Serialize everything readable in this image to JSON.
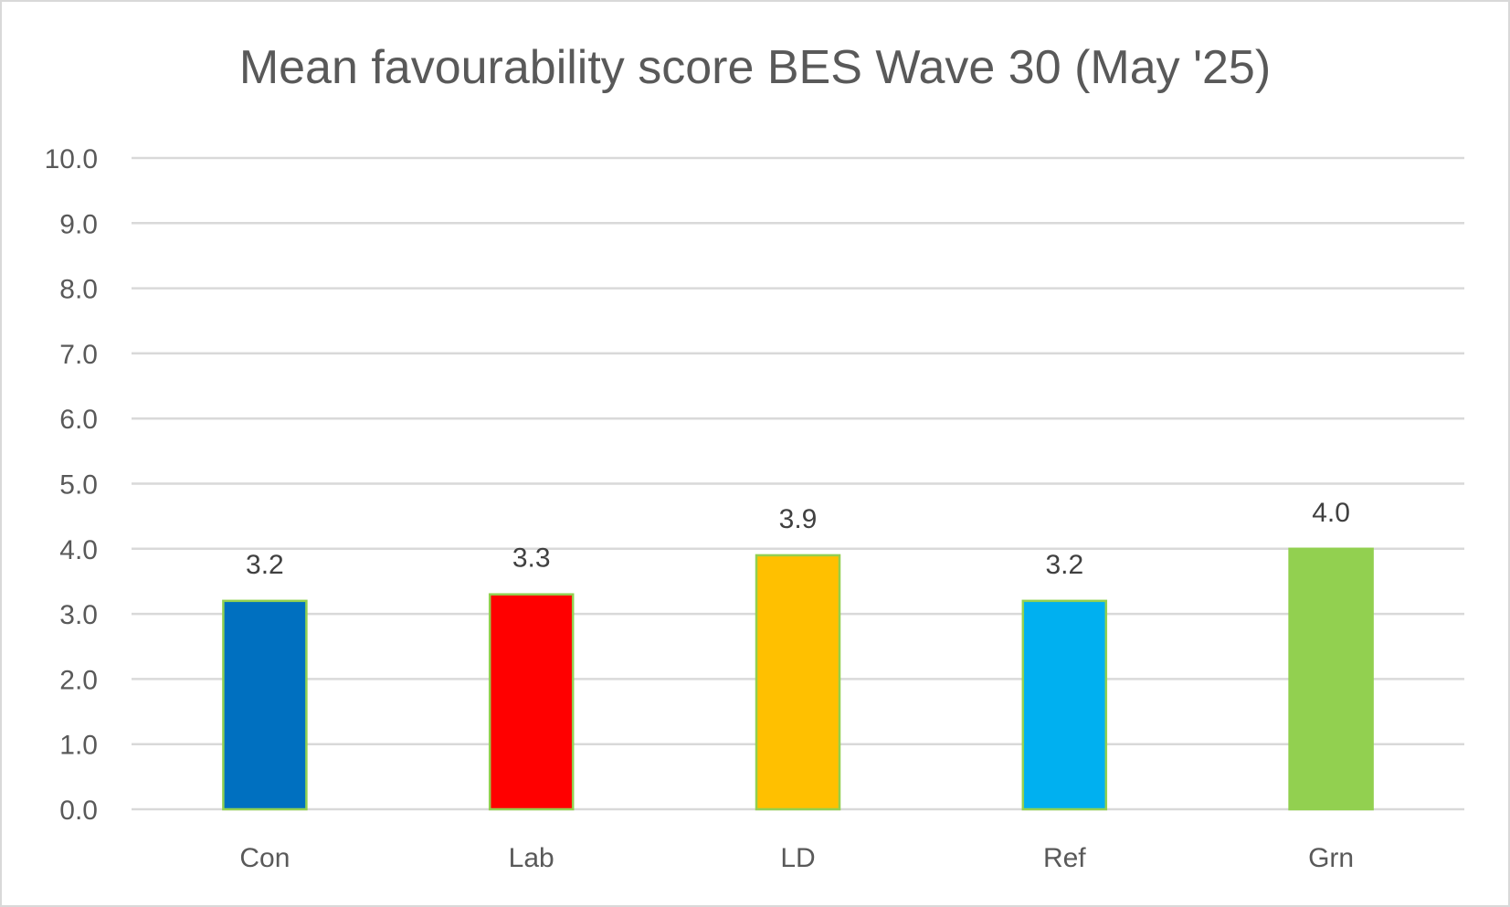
{
  "chart_data": {
    "type": "bar",
    "title": "Mean favourability score BES Wave 30 (May '25)",
    "categories": [
      "Con",
      "Lab",
      "LD",
      "Ref",
      "Grn"
    ],
    "values": [
      3.2,
      3.3,
      3.9,
      3.2,
      4.0
    ],
    "data_labels": [
      "3.2",
      "3.3",
      "3.9",
      "3.2",
      "4.0"
    ],
    "colors": [
      "#0070C0",
      "#FF0000",
      "#FFC000",
      "#00B0F0",
      "#92D050"
    ],
    "bar_outline_color": "#92D050",
    "xlabel": "",
    "ylabel": "",
    "ylim": [
      0,
      10
    ],
    "yticks": [
      "0.0",
      "1.0",
      "2.0",
      "3.0",
      "4.0",
      "5.0",
      "6.0",
      "7.0",
      "8.0",
      "9.0",
      "10.0"
    ],
    "grid": true,
    "legend": "none"
  }
}
